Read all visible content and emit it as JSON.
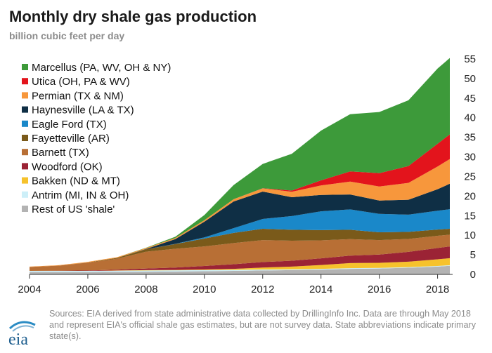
{
  "title": "Monthly dry shale gas production",
  "subtitle": "billion cubic feet per day",
  "source_note": "Sources: EIA derived from state administrative data collected by DrillingInfo Inc. Data are through May 2018 and represent EIA's official shale gas estimates, but are not survey data. State abbreviations indicate primary state(s).",
  "logo_text": "eia",
  "colors": {
    "Marcellus": "#3d9a3a",
    "Utica": "#e3141c",
    "Permian": "#f7973c",
    "Haynesville": "#0f2f45",
    "Eagle Ford": "#1a88c9",
    "Fayetteville": "#7a5a1a",
    "Barnett": "#b86f35",
    "Woodford": "#9b2335",
    "Bakken": "#f6c22c",
    "Antrim": "#cdeff8",
    "Rest": "#b3b3b3"
  },
  "chart_data": {
    "type": "area",
    "stacked": true,
    "title": "Monthly dry shale gas production",
    "ylabel": "billion cubic feet per day",
    "xlim": [
      2004,
      2018.42
    ],
    "ylim": [
      0,
      55
    ],
    "x_ticks": [
      "2004",
      "2006",
      "2008",
      "2010",
      "2012",
      "2014",
      "2016",
      "2018"
    ],
    "y_ticks": [
      "0",
      "5",
      "10",
      "15",
      "20",
      "25",
      "30",
      "35",
      "40",
      "45",
      "50",
      "55"
    ],
    "y_axis_position": "right",
    "legend_position": "top-left",
    "x": [
      2004,
      2005,
      2006,
      2007,
      2008,
      2009,
      2010,
      2011,
      2012,
      2013,
      2014,
      2015,
      2016,
      2017,
      2018,
      2018.42
    ],
    "series": [
      {
        "name": "Rest of US 'shale'",
        "values": [
          0.6,
          0.6,
          0.6,
          0.65,
          0.7,
          0.75,
          0.8,
          0.9,
          1.0,
          1.1,
          1.2,
          1.4,
          1.5,
          1.7,
          2.0,
          2.2
        ]
      },
      {
        "name": "Antrim (MI, IN & OH)",
        "values": [
          0.3,
          0.3,
          0.3,
          0.3,
          0.3,
          0.3,
          0.3,
          0.25,
          0.25,
          0.2,
          0.2,
          0.2,
          0.15,
          0.15,
          0.15,
          0.15
        ]
      },
      {
        "name": "Bakken (ND & MT)",
        "values": [
          0.0,
          0.0,
          0.0,
          0.05,
          0.1,
          0.1,
          0.15,
          0.25,
          0.5,
          0.7,
          1.0,
          1.3,
          1.3,
          1.4,
          1.7,
          1.8
        ]
      },
      {
        "name": "Woodford (OK)",
        "values": [
          0.0,
          0.05,
          0.1,
          0.2,
          0.4,
          0.6,
          0.9,
          1.2,
          1.4,
          1.5,
          1.7,
          1.9,
          2.1,
          2.5,
          2.9,
          3.0
        ]
      },
      {
        "name": "Barnett (TX)",
        "values": [
          1.0,
          1.3,
          2.0,
          2.8,
          4.3,
          4.8,
          5.0,
          5.4,
          5.6,
          5.1,
          4.6,
          4.2,
          3.7,
          3.3,
          3.1,
          3.0
        ]
      },
      {
        "name": "Fayetteville (AR)",
        "values": [
          0.0,
          0.0,
          0.05,
          0.2,
          0.6,
          1.2,
          2.0,
          2.6,
          2.9,
          2.8,
          2.6,
          2.4,
          2.0,
          1.8,
          1.6,
          1.5
        ]
      },
      {
        "name": "Eagle Ford (TX)",
        "values": [
          0.0,
          0.0,
          0.0,
          0.0,
          0.0,
          0.05,
          0.3,
          1.2,
          2.5,
          3.5,
          4.8,
          5.2,
          4.7,
          4.4,
          4.8,
          5.0
        ]
      },
      {
        "name": "Haynesville (LA & TX)",
        "values": [
          0.0,
          0.0,
          0.0,
          0.0,
          0.1,
          1.2,
          4.0,
          6.8,
          7.0,
          4.8,
          4.2,
          3.8,
          3.4,
          3.8,
          5.5,
          6.5
        ]
      },
      {
        "name": "Permian (TX & NM)",
        "values": [
          0.1,
          0.1,
          0.15,
          0.2,
          0.25,
          0.3,
          0.4,
          0.6,
          0.8,
          1.4,
          2.4,
          3.3,
          3.6,
          4.3,
          5.8,
          6.3
        ]
      },
      {
        "name": "Utica (OH, PA & WV)",
        "values": [
          0.0,
          0.0,
          0.0,
          0.0,
          0.0,
          0.0,
          0.0,
          0.0,
          0.05,
          0.3,
          1.3,
          2.6,
          3.4,
          4.3,
          5.8,
          6.3
        ]
      },
      {
        "name": "Marcellus (PA, WV, OH & NY)",
        "values": [
          0.0,
          0.0,
          0.0,
          0.0,
          0.05,
          0.3,
          1.3,
          3.6,
          6.2,
          9.4,
          12.7,
          14.6,
          15.6,
          16.8,
          19.2,
          19.5
        ]
      }
    ]
  }
}
